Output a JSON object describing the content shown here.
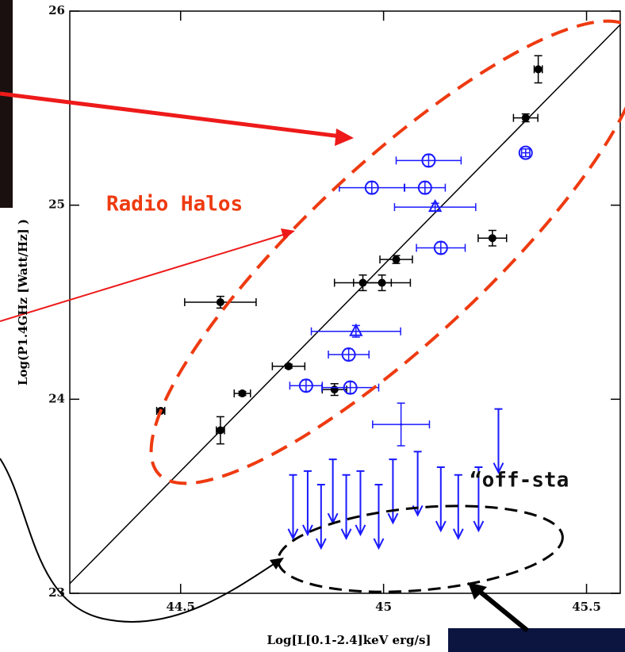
{
  "chart_data": {
    "type": "scatter",
    "x_label": "Log[L[0.1-2.4]keV erg/s]",
    "y_label": "Log(P1.4GHz [Watt/Hz] )",
    "xlim": [
      44.227,
      45.583
    ],
    "ylim": [
      23,
      26
    ],
    "xticks": [
      44.5,
      45,
      45.5
    ],
    "yticks": [
      23,
      24,
      25,
      26
    ],
    "annotations": [
      "Radio Halos",
      "“off-sta"
    ],
    "fit_line": {
      "x": [
        44.227,
        45.583
      ],
      "y": [
        23.05,
        25.93
      ]
    },
    "series": [
      {
        "color": "#000000",
        "marker": "filled-circle",
        "x": [
          44.451,
          44.598,
          44.598,
          44.652,
          44.766,
          44.879,
          44.949,
          44.996,
          45.031,
          45.268,
          45.35,
          45.381
        ],
        "y": [
          23.94,
          23.84,
          24.5,
          24.03,
          24.17,
          24.05,
          24.6,
          24.6,
          24.72,
          24.83,
          25.45,
          25.7
        ],
        "xerr": [
          0.01,
          0.01,
          0.088,
          0.02,
          0.04,
          0.03,
          0.07,
          0.07,
          0.04,
          0.035,
          0.03,
          0.01
        ],
        "yerr": [
          0.01,
          0.07,
          0.03,
          0.01,
          0.01,
          0.03,
          0.04,
          0.04,
          0.02,
          0.04,
          0.02,
          0.07
        ]
      },
      {
        "color": "#1a1aff",
        "marker": "open-circle",
        "x": [
          45.111,
          44.971,
          45.102,
          45.35,
          45.141,
          44.914,
          44.918,
          44.809
        ],
        "y": [
          25.23,
          25.09,
          25.09,
          25.27,
          24.78,
          24.23,
          24.06,
          24.07
        ],
        "xerr": [
          0.08,
          0.08,
          0.05,
          0.01,
          0.06,
          0.05,
          0.07,
          0.04
        ],
        "yerr": [
          0.03,
          0.03,
          0.03,
          0.02,
          0.03,
          0.03,
          0.03,
          0.03
        ]
      },
      {
        "color": "#1a1aff",
        "marker": "open-triangle",
        "x": [
          45.127,
          44.932
        ],
        "y": [
          24.99,
          24.35
        ],
        "xerr": [
          0.1,
          0.11
        ],
        "yerr": [
          0.02,
          0.03
        ]
      },
      {
        "color": "#1a1aff",
        "marker": "cross",
        "x": [
          45.043
        ],
        "y": [
          23.87
        ],
        "xerr": [
          0.07
        ],
        "yerr": [
          0.11
        ]
      },
      {
        "color": "#1a1aff",
        "marker": "upper-limit",
        "x": [
          44.777,
          44.813,
          44.846,
          44.875,
          44.908,
          44.943,
          44.988,
          45.023,
          45.084,
          45.141,
          45.184,
          45.234,
          45.283
        ],
        "y": [
          23.61,
          23.63,
          23.56,
          23.69,
          23.61,
          23.63,
          23.56,
          23.69,
          23.73,
          23.65,
          23.61,
          23.65,
          23.95
        ]
      }
    ]
  }
}
